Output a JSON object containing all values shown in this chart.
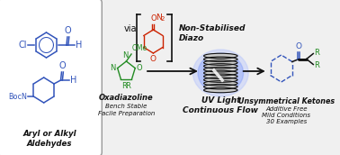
{
  "bg_color": "#f0f0f0",
  "box_bg": "#ffffff",
  "blue_color": "#3355bb",
  "green_color": "#228B22",
  "red_color": "#cc2200",
  "black_color": "#111111",
  "panel1_title": "Aryl or Alkyl\nAldehydes",
  "via_text": "via",
  "nonstab_title": "Non-Stabilised\nDiazo",
  "oxad_title": "Oxadiazoline",
  "oxad_sub": "Bench Stable\nFacile Preparation",
  "uvlight_title": "UV Light\nContinuous Flow",
  "ketone_title": "Unsymmetrical Ketones",
  "ketone_sub": "Additive Free\nMild Conditions\n30 Examples"
}
